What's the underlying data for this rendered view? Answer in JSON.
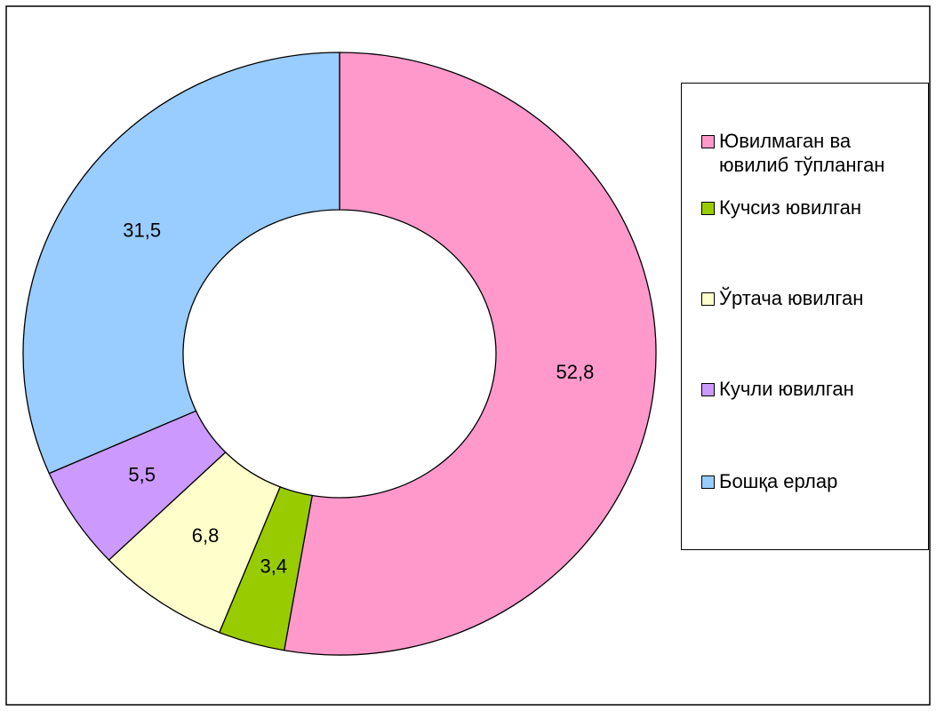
{
  "chart_data": {
    "type": "donut",
    "categories": [
      "Ювилмаган ва ювилиб тўпланган",
      "Кучсиз ювилган",
      "Ўртача ювилган",
      "Кучли ювилган",
      "Бошқа ерлар"
    ],
    "values": [
      52.8,
      3.4,
      6.8,
      5.5,
      31.5
    ],
    "value_labels": [
      "52,8",
      "3,4",
      "6,8",
      "5,5",
      "31,5"
    ],
    "colors": [
      "#ff99cc",
      "#99cc00",
      "#ffffcc",
      "#cc99ff",
      "#99ccff"
    ],
    "legend": "right"
  }
}
